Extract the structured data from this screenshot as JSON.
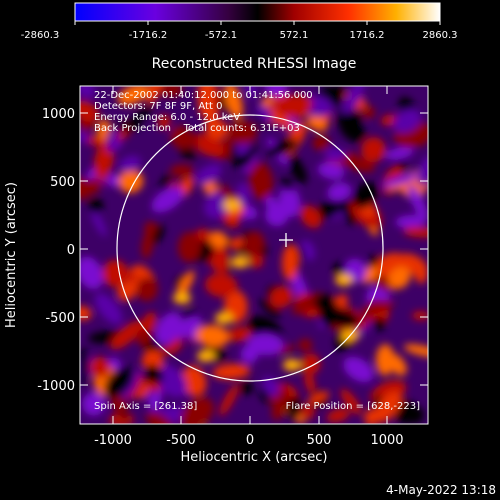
{
  "colorbar": {
    "ticks": [
      "-2860.3",
      "-1716.2",
      "-572.1",
      "572.1",
      "1716.2",
      "2860.3"
    ]
  },
  "plot": {
    "title": "Reconstructed RHESSI Image",
    "xlabel": "Heliocentric X (arcsec)",
    "ylabel": "Heliocentric Y (arcsec)",
    "x_ticks": [
      "-1000",
      "-500",
      "0",
      "500",
      "1000"
    ],
    "y_ticks": [
      "1000",
      "500",
      "0",
      "-500",
      "-1000"
    ],
    "info_lines": [
      "22-Dec-2002 01:40:12.000 to 01:41:56.000",
      "Detectors: 7F 8F 9F, Att 0",
      "Energy Range: 6.0 - 12.0 keV",
      "Back Projection    Total counts: 6.31E+03"
    ],
    "spin_axis": "Spin Axis = [261.38]",
    "flare_position": "Flare Position = [628,-223]"
  },
  "footer": {
    "date": "4-May-2022 13:18"
  }
}
